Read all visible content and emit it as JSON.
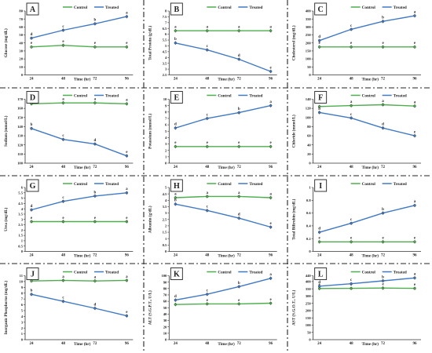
{
  "legend": {
    "control": "Control",
    "treated": "Treated",
    "control_color": "#4cae4c",
    "treated_color": "#3f79c4"
  },
  "x_axis_label": "Time (hr)",
  "x_ticks": [
    "24",
    "48",
    "72",
    "96"
  ],
  "chart_data": [
    {
      "type": "line",
      "panel": "A",
      "ylabel": "Glucose (mg/dL)",
      "ylim": [
        0,
        80
      ],
      "yticks": [
        0,
        10,
        20,
        30,
        40,
        50,
        60,
        70,
        80
      ],
      "xlabel": "Time (hr)",
      "x": [
        24,
        48,
        72,
        96
      ],
      "series": [
        {
          "name": "Control",
          "values": [
            35,
            37,
            35,
            35
          ],
          "labels": [
            "e",
            "e",
            "e",
            "e"
          ]
        },
        {
          "name": "Treated",
          "values": [
            46,
            56,
            64,
            73
          ],
          "labels": [
            "d",
            "c",
            "b",
            "a"
          ]
        }
      ]
    },
    {
      "type": "line",
      "panel": "B",
      "ylabel": "Total Protein (g/dL)",
      "ylim": [
        2.5,
        8
      ],
      "yticks": [
        2.5,
        3,
        3.5,
        4,
        4.5,
        5,
        5.5,
        6,
        6.5,
        7,
        7.5,
        8
      ],
      "xlabel": "Time (hr)",
      "x": [
        24,
        48,
        72,
        96
      ],
      "series": [
        {
          "name": "Control",
          "values": [
            6.3,
            6.3,
            6.3,
            6.3
          ],
          "labels": [
            "a",
            "a",
            "a",
            "a"
          ]
        },
        {
          "name": "Treated",
          "values": [
            5.25,
            4.65,
            3.85,
            2.8
          ],
          "labels": [
            "b",
            "c",
            "d",
            "e"
          ]
        }
      ]
    },
    {
      "type": "line",
      "panel": "C",
      "ylabel": "Cholesterol (mg/dL)",
      "ylim": [
        0,
        400
      ],
      "yticks": [
        0,
        50,
        100,
        150,
        200,
        250,
        300,
        350,
        400
      ],
      "xlabel": "Time (hr)",
      "x": [
        24,
        48,
        72,
        96
      ],
      "series": [
        {
          "name": "Control",
          "values": [
            175,
            175,
            175,
            175
          ],
          "labels": [
            "e",
            "e",
            "e",
            "e"
          ]
        },
        {
          "name": "Treated",
          "values": [
            215,
            285,
            335,
            370
          ],
          "labels": [
            "d",
            "c",
            "b",
            "a"
          ]
        }
      ]
    },
    {
      "type": "line",
      "panel": "D",
      "ylabel": "Sodium (mmol/L)",
      "ylim": [
        100,
        170
      ],
      "yticks": [
        100,
        110,
        120,
        130,
        140,
        150,
        160,
        170
      ],
      "xlabel": "Time (hr)",
      "x": [
        24,
        48,
        72,
        96
      ],
      "series": [
        {
          "name": "Control",
          "values": [
            165,
            166,
            166,
            165
          ],
          "labels": [
            "a",
            "a",
            "a",
            "a"
          ]
        },
        {
          "name": "Treated",
          "values": [
            138,
            126,
            121,
            108
          ],
          "labels": [
            "b",
            "c",
            "d",
            "e"
          ]
        }
      ]
    },
    {
      "type": "line",
      "panel": "E",
      "ylabel": "Potassium (mmol/L)",
      "ylim": [
        0,
        10
      ],
      "yticks": [
        0,
        1,
        2,
        3,
        4,
        5,
        6,
        7,
        8,
        9,
        10
      ],
      "xlabel": "Time (hr)",
      "x": [
        24,
        48,
        72,
        96
      ],
      "series": [
        {
          "name": "Control",
          "values": [
            2.6,
            2.6,
            2.6,
            2.6
          ],
          "labels": [
            "e",
            "e",
            "e",
            "e"
          ]
        },
        {
          "name": "Treated",
          "values": [
            5.5,
            7.0,
            7.9,
            9.0
          ],
          "labels": [
            "d",
            "c",
            "b",
            "a"
          ]
        }
      ]
    },
    {
      "type": "line",
      "panel": "F",
      "ylabel": "Chloride (mmol/L)",
      "ylim": [
        0,
        140
      ],
      "yticks": [
        0,
        20,
        40,
        60,
        80,
        100,
        120,
        140
      ],
      "xlabel": "Time (hr)",
      "x": [
        24,
        48,
        72,
        96
      ],
      "series": [
        {
          "name": "Control",
          "values": [
            124,
            126,
            128,
            125
          ],
          "labels": [
            "a",
            "a",
            "a",
            "a"
          ]
        },
        {
          "name": "Treated",
          "values": [
            111,
            99,
            77,
            60
          ],
          "labels": [
            "b",
            "c",
            "d",
            "e"
          ]
        }
      ]
    },
    {
      "type": "line",
      "panel": "G",
      "ylabel": "Urea (mg/dL)",
      "ylim": [
        0,
        6
      ],
      "yticks": [
        0,
        0.5,
        1,
        1.5,
        2,
        2.5,
        3,
        3.5,
        4,
        4.5,
        5,
        5.5,
        6
      ],
      "xlabel": "Time (hr)",
      "x": [
        24,
        48,
        72,
        96
      ],
      "series": [
        {
          "name": "Control",
          "values": [
            2.8,
            2.8,
            2.8,
            2.8
          ],
          "labels": [
            "e",
            "e",
            "e",
            "e"
          ]
        },
        {
          "name": "Treated",
          "values": [
            3.9,
            4.7,
            5.2,
            5.5
          ],
          "labels": [
            "d",
            "c",
            "b",
            "a"
          ]
        }
      ]
    },
    {
      "type": "line",
      "panel": "H",
      "ylabel": "Albumin (g/dL)",
      "ylim": [
        0,
        5
      ],
      "yticks": [
        0,
        0.5,
        1,
        1.5,
        2,
        2.5,
        3,
        3.5,
        4,
        4.5,
        5
      ],
      "xlabel": "Time (hr)",
      "x": [
        24,
        48,
        72,
        96
      ],
      "series": [
        {
          "name": "Control",
          "values": [
            4.2,
            4.3,
            4.3,
            4.2
          ],
          "labels": [
            "a",
            "a",
            "a",
            "a"
          ]
        },
        {
          "name": "Treated",
          "values": [
            3.7,
            3.2,
            2.6,
            1.9
          ],
          "labels": [
            "b",
            "c",
            "d",
            "e"
          ]
        }
      ]
    },
    {
      "type": "line",
      "panel": "I",
      "ylabel": "Total Bilirubin (mg/dL)",
      "ylim": [
        0,
        1
      ],
      "yticks": [
        0,
        0.2,
        0.4,
        0.6,
        0.8,
        1
      ],
      "xlabel": "Time (hr)",
      "x": [
        24,
        48,
        72,
        96
      ],
      "series": [
        {
          "name": "Control",
          "values": [
            0.15,
            0.15,
            0.15,
            0.15
          ],
          "labels": [
            "e",
            "e",
            "e",
            "e"
          ]
        },
        {
          "name": "Treated",
          "values": [
            0.3,
            0.44,
            0.6,
            0.72
          ],
          "labels": [
            "d",
            "c",
            "b",
            "a"
          ]
        }
      ]
    },
    {
      "type": "line",
      "panel": "J",
      "ylabel": "Inorganic Phosphorus (mg/dL)",
      "ylim": [
        0,
        11
      ],
      "yticks": [
        0,
        1,
        2,
        3,
        4,
        5,
        6,
        7,
        8,
        9,
        10,
        11
      ],
      "xlabel": "Time (hr)",
      "x": [
        24,
        48,
        72,
        96
      ],
      "series": [
        {
          "name": "Control",
          "values": [
            10.1,
            10.2,
            10.1,
            10.2
          ],
          "labels": [
            "a",
            "a",
            "a",
            "a"
          ]
        },
        {
          "name": "Treated",
          "values": [
            7.8,
            6.6,
            5.4,
            4.1
          ],
          "labels": [
            "b",
            "c",
            "d",
            "e"
          ]
        }
      ]
    },
    {
      "type": "line",
      "panel": "K",
      "ylabel": "ALT (S.G.P.T., U/L)",
      "ylim": [
        0,
        100
      ],
      "yticks": [
        0,
        10,
        20,
        30,
        40,
        50,
        60,
        70,
        80,
        90,
        100
      ],
      "xlabel": "Time (hr)",
      "x": [
        24,
        48,
        72,
        96
      ],
      "series": [
        {
          "name": "Control",
          "values": [
            55,
            56,
            56,
            57
          ],
          "labels": [
            "e",
            "e",
            "e",
            "e"
          ]
        },
        {
          "name": "Treated",
          "values": [
            62,
            71,
            83,
            96
          ],
          "labels": [
            "d",
            "c",
            "b",
            "a"
          ]
        }
      ]
    },
    {
      "type": "line",
      "panel": "L",
      "ylabel": "AST (S.G.O.T., U/L)",
      "ylim": [
        0,
        440
      ],
      "yticks": [
        0,
        50,
        100,
        150,
        200,
        250,
        300,
        350,
        400,
        440
      ],
      "xlabel": "Time (hr)",
      "x": [
        24,
        48,
        72,
        96
      ],
      "series": [
        {
          "name": "Control",
          "values": [
            352,
            353,
            355,
            353
          ],
          "labels": [
            "e",
            "e",
            "e",
            "e"
          ]
        },
        {
          "name": "Treated",
          "values": [
            368,
            385,
            405,
            425
          ],
          "labels": [
            "d",
            "c",
            "b",
            "a"
          ]
        }
      ]
    }
  ]
}
